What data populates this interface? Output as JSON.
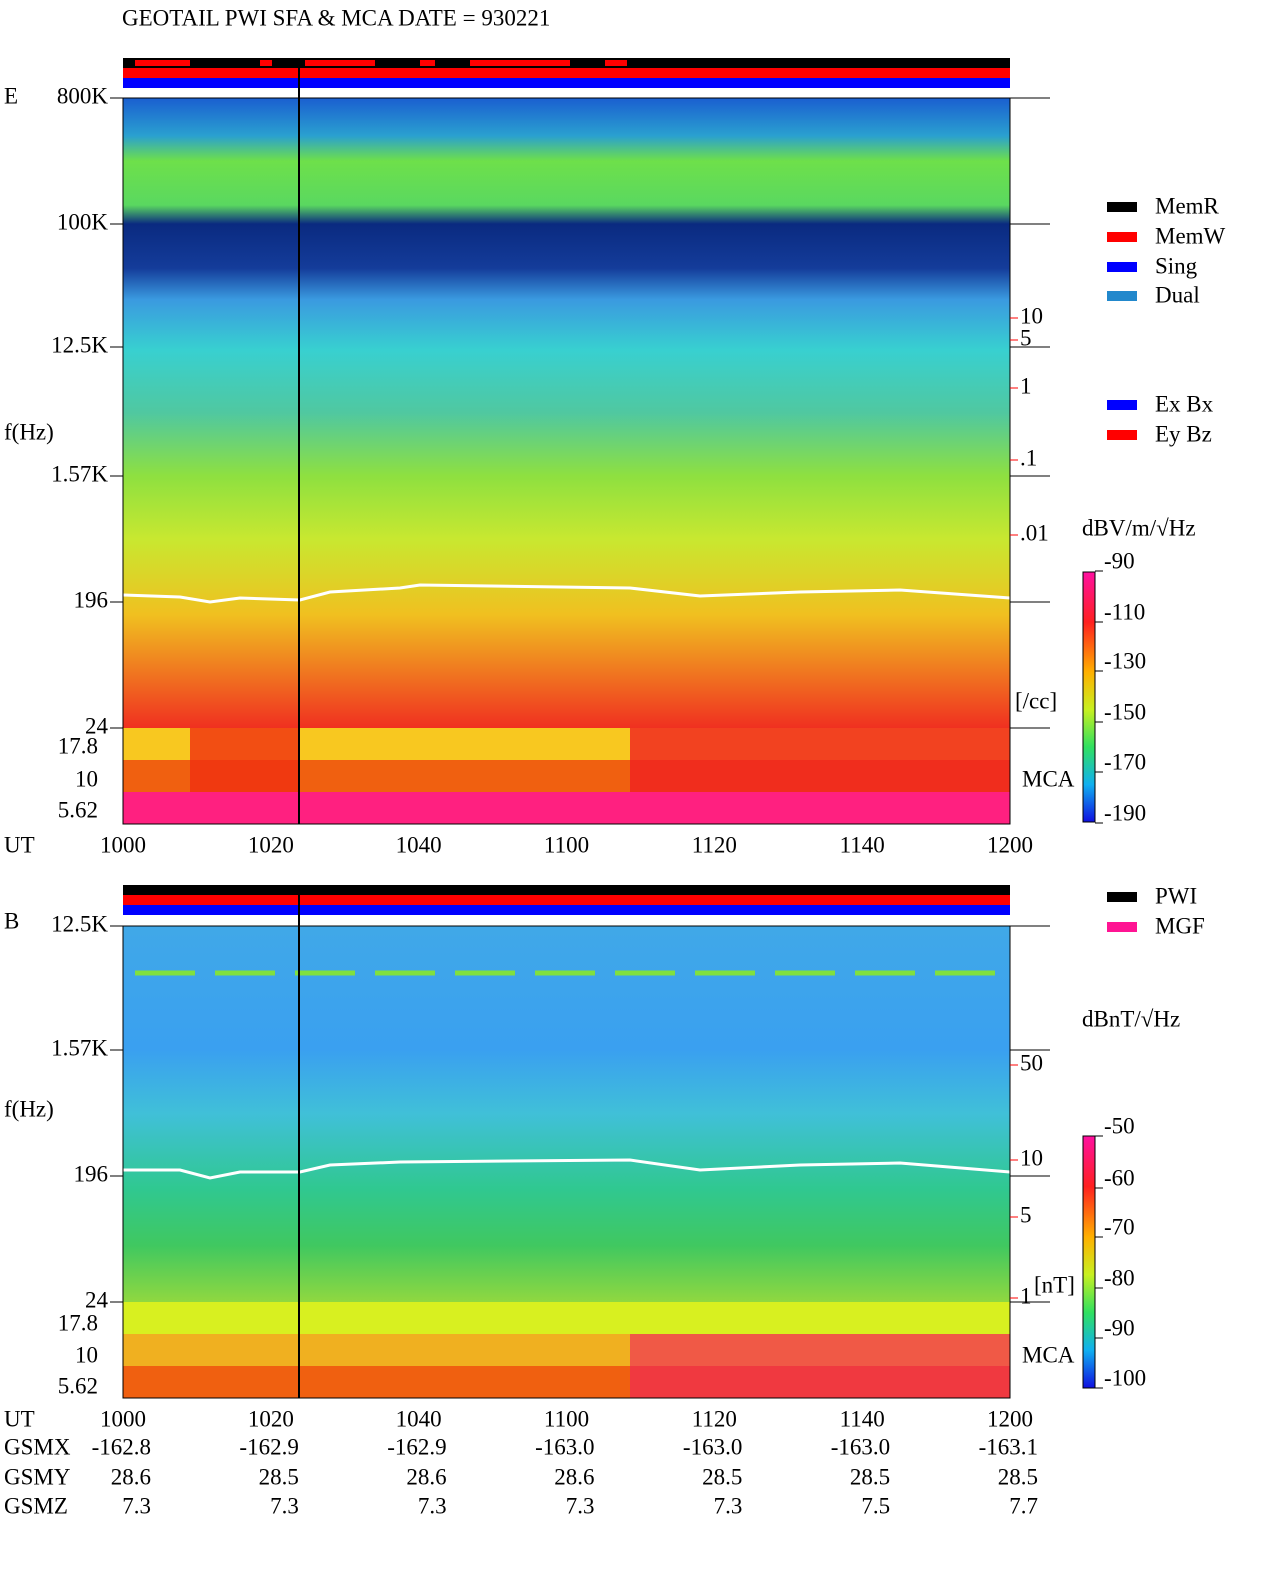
{
  "title": "GEOTAIL  PWI  SFA & MCA   DATE = 930221",
  "panel_e": {
    "label": "E",
    "y_axis_label": "f(Hz)",
    "freq_ticks": [
      "800K",
      "100K",
      "12.5K",
      "1.57K",
      "196",
      "24"
    ],
    "mca_ticks": [
      "17.8",
      "10",
      "5.62"
    ],
    "time_label": "UT",
    "time_ticks": [
      "1000",
      "1020",
      "1040",
      "1100",
      "1120",
      "1140",
      "1200"
    ],
    "legend_mem": [
      "MemR",
      "MemW",
      "Sing",
      "Dual"
    ],
    "legend_comp": [
      "Ex Bx",
      "Ey Bz"
    ],
    "density_ticks": [
      "10",
      "5",
      "1",
      ".1",
      ".01"
    ],
    "density_unit": "[/cc]",
    "mca_label": "MCA",
    "colorbar_unit": "dBV/m/√Hz",
    "colorbar_ticks": [
      "-90",
      "-110",
      "-130",
      "-150",
      "-170",
      "-190"
    ]
  },
  "panel_b": {
    "label": "B",
    "y_axis_label": "f(Hz)",
    "freq_ticks": [
      "12.5K",
      "1.57K",
      "196",
      "24"
    ],
    "mca_ticks": [
      "17.8",
      "10",
      "5.62"
    ],
    "time_label": "UT",
    "time_ticks": [
      "1000",
      "1020",
      "1040",
      "1100",
      "1120",
      "1140",
      "1200"
    ],
    "legend": [
      "PWI",
      "MGF"
    ],
    "field_ticks": [
      "50",
      "10",
      "5",
      "1"
    ],
    "field_unit": "[nT]",
    "mca_label": "MCA",
    "colorbar_unit": "dBnT/√Hz",
    "colorbar_ticks": [
      "-50",
      "-60",
      "-70",
      "-80",
      "-90",
      "-100"
    ]
  },
  "orbit": {
    "rows": [
      {
        "label": "GSMX",
        "values": [
          "-162.8",
          "-162.9",
          "-162.9",
          "-163.0",
          "-163.0",
          "-163.0",
          "-163.1"
        ]
      },
      {
        "label": "GSMY",
        "values": [
          "28.6",
          "28.5",
          "28.6",
          "28.6",
          "28.5",
          "28.5",
          "28.5"
        ]
      },
      {
        "label": "GSMZ",
        "values": [
          "7.3",
          "7.3",
          "7.3",
          "7.3",
          "7.3",
          "7.5",
          "7.7"
        ]
      }
    ]
  }
}
